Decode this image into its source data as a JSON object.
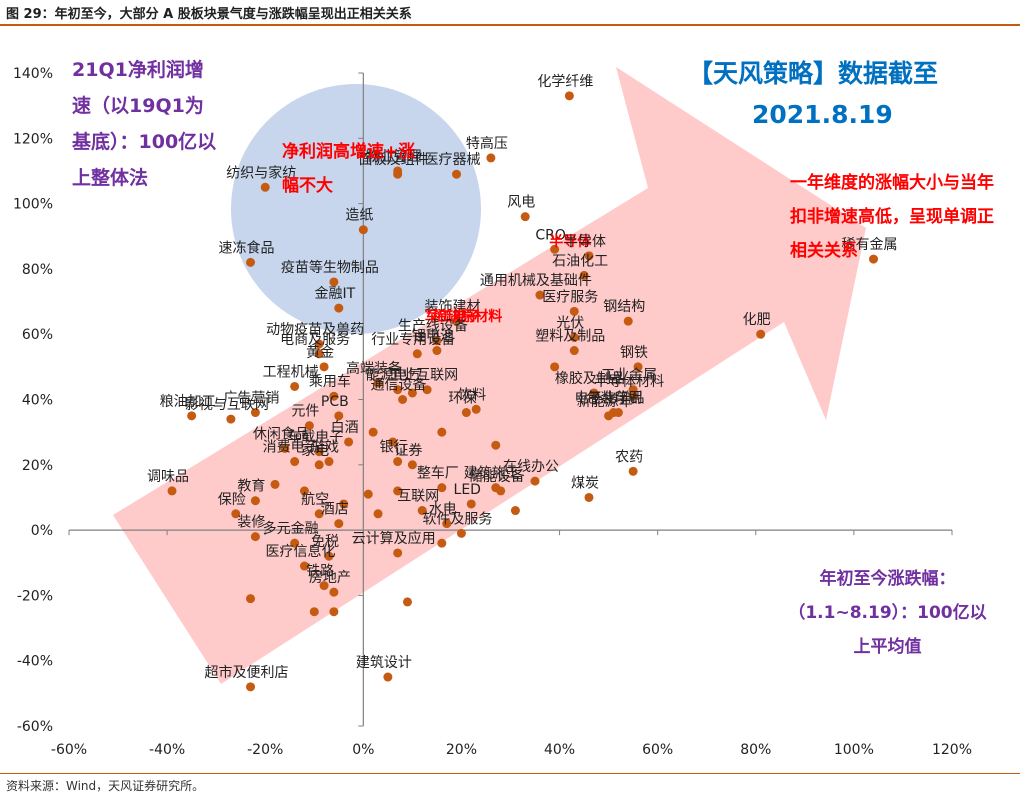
{
  "figure": {
    "title": "图 29：年初至今，大部分 A 股板块景气度与涨跌幅呈现出正相关关系",
    "source": "资料来源：Wind，天风证券研究所。"
  },
  "annotations": {
    "left_note": "21Q1净利润增速（以19Q1为基底）：100亿以上整体法",
    "brand": "【天风策略】数据截至",
    "date": "2021.8.19",
    "right_note": "一年维度的涨幅大小与当年扣非增速高低，呈现单调正相关关系",
    "bubble_note": "净利润高增速+涨幅不大",
    "bottom_note": "年初至今涨跌幅：（1.1~8.19）：100亿以上平均值"
  },
  "colors": {
    "point": "#c55a11",
    "bubble": "#b4c7e7",
    "arrow": "#ffb3b3",
    "axis": "#808080",
    "highlight_label": "#ff0000"
  },
  "chart_data": {
    "type": "scatter",
    "xlim": [
      -0.6,
      1.2
    ],
    "ylim": [
      -0.6,
      1.4
    ],
    "x_ticks": [
      -0.6,
      -0.4,
      -0.2,
      0,
      0.2,
      0.4,
      0.6,
      0.8,
      1.0,
      1.2
    ],
    "x_tick_labels": [
      "-60%",
      "-40%",
      "-20%",
      "0%",
      "20%",
      "40%",
      "60%",
      "80%",
      "100%",
      "120%"
    ],
    "y_ticks": [
      -0.6,
      -0.4,
      -0.2,
      0,
      0.2,
      0.4,
      0.6,
      0.8,
      1.0,
      1.2,
      1.4
    ],
    "y_tick_labels": [
      "-60%",
      "-40%",
      "-20%",
      "0%",
      "20%",
      "40%",
      "60%",
      "80%",
      "100%",
      "120%",
      "140%"
    ],
    "grid": false,
    "points": [
      {
        "label": "化学纤维",
        "x": 0.42,
        "y": 1.33
      },
      {
        "label": "特高压",
        "x": 0.26,
        "y": 1.14
      },
      {
        "label": "医疗器械",
        "x": 0.19,
        "y": 1.09
      },
      {
        "label": "物业管理",
        "x": 0.07,
        "y": 1.1
      },
      {
        "label": "面板及组件",
        "x": 0.07,
        "y": 1.09
      },
      {
        "label": "纺织与家纺",
        "x": -0.2,
        "y": 1.05
      },
      {
        "label": "造纸",
        "x": 0.0,
        "y": 0.92
      },
      {
        "label": "风电",
        "x": 0.33,
        "y": 0.96
      },
      {
        "label": "CRO",
        "x": 0.39,
        "y": 0.86
      },
      {
        "label": "半导体",
        "x": 0.43,
        "y": 0.84,
        "highlight": true
      },
      {
        "label": "半导体",
        "x": 0.46,
        "y": 0.84
      },
      {
        "label": "速冻食品",
        "x": -0.23,
        "y": 0.82
      },
      {
        "label": "稀有金属",
        "x": 1.04,
        "y": 0.83
      },
      {
        "label": "石油化工",
        "x": 0.45,
        "y": 0.78
      },
      {
        "label": "疫苗等生物制品",
        "x": -0.06,
        "y": 0.76
      },
      {
        "label": "通用机械及基础件",
        "x": 0.36,
        "y": 0.72
      },
      {
        "label": "钢结构",
        "x": 0.54,
        "y": 0.64
      },
      {
        "label": "医疗服务",
        "x": 0.43,
        "y": 0.67
      },
      {
        "label": "化肥",
        "x": 0.81,
        "y": 0.6
      },
      {
        "label": "装饰建材",
        "x": 0.19,
        "y": 0.64
      },
      {
        "label": "金融IT",
        "x": -0.05,
        "y": 0.68
      },
      {
        "label": "军工电子",
        "x": 0.19,
        "y": 0.61,
        "highlight": true
      },
      {
        "label": "稀缺原材料",
        "x": 0.22,
        "y": 0.61,
        "highlight": true
      },
      {
        "label": "光伏",
        "x": 0.43,
        "y": 0.59
      },
      {
        "label": "生产线设备",
        "x": 0.15,
        "y": 0.58
      },
      {
        "label": "动物疫苗及兽药",
        "x": -0.09,
        "y": 0.57
      },
      {
        "label": "锂电池",
        "x": 0.15,
        "y": 0.55
      },
      {
        "label": "塑料及制品",
        "x": 0.43,
        "y": 0.55
      },
      {
        "label": "电商及服务",
        "x": -0.09,
        "y": 0.54
      },
      {
        "label": "行业专用设备",
        "x": 0.11,
        "y": 0.54
      },
      {
        "label": "黄金",
        "x": -0.08,
        "y": 0.5
      },
      {
        "label": "钢铁",
        "x": 0.56,
        "y": 0.5
      },
      {
        "label": "工程机械",
        "x": -0.14,
        "y": 0.44
      },
      {
        "label": "高端装备",
        "x": 0.03,
        "y": 0.45
      },
      {
        "label": "能源电气",
        "x": 0.07,
        "y": 0.43
      },
      {
        "label": "工业互联网",
        "x": 0.13,
        "y": 0.43
      },
      {
        "label": "工业金属",
        "x": 0.55,
        "y": 0.43
      },
      {
        "label": "橡胶及制品",
        "x": 0.47,
        "y": 0.42
      },
      {
        "label": "半导体材料",
        "x": 0.55,
        "y": 0.41
      },
      {
        "label": "粮油加工",
        "x": -0.35,
        "y": 0.35
      },
      {
        "label": "广告营销",
        "x": -0.22,
        "y": 0.36
      },
      {
        "label": "乘用车",
        "x": -0.06,
        "y": 0.41
      },
      {
        "label": "通信设备",
        "x": 0.08,
        "y": 0.4
      },
      {
        "label": "饮料",
        "x": 0.23,
        "y": 0.37
      },
      {
        "label": "新能源车",
        "x": 0.5,
        "y": 0.35
      },
      {
        "label": "包装印刷",
        "x": 0.52,
        "y": 0.36
      },
      {
        "label": "电子化学品",
        "x": 0.51,
        "y": 0.36
      },
      {
        "label": "影视与互联网",
        "x": -0.27,
        "y": 0.34
      },
      {
        "label": "环保",
        "x": 0.21,
        "y": 0.36
      },
      {
        "label": "PCB",
        "x": -0.05,
        "y": 0.35
      },
      {
        "label": "元件",
        "x": -0.11,
        "y": 0.32
      },
      {
        "label": "农药",
        "x": 0.55,
        "y": 0.18
      },
      {
        "label": "休闲食品",
        "x": -0.16,
        "y": 0.25
      },
      {
        "label": "车载电子",
        "x": -0.09,
        "y": 0.24
      },
      {
        "label": "游戏",
        "x": -0.07,
        "y": 0.21
      },
      {
        "label": "白酒",
        "x": -0.03,
        "y": 0.27
      },
      {
        "label": "调味品",
        "x": -0.39,
        "y": 0.12
      },
      {
        "label": "消费电子",
        "x": -0.14,
        "y": 0.21
      },
      {
        "label": "家电",
        "x": -0.09,
        "y": 0.2
      },
      {
        "label": "银行",
        "x": 0.07,
        "y": 0.21
      },
      {
        "label": "证券",
        "x": 0.1,
        "y": 0.2
      },
      {
        "label": "保险",
        "x": -0.26,
        "y": 0.05
      },
      {
        "label": "煤炭",
        "x": 0.46,
        "y": 0.1
      },
      {
        "label": "储能设备",
        "x": 0.28,
        "y": 0.12
      },
      {
        "label": "在线办公",
        "x": 0.35,
        "y": 0.15
      },
      {
        "label": "建筑施工",
        "x": 0.27,
        "y": 0.13
      },
      {
        "label": "整车厂",
        "x": 0.16,
        "y": 0.13
      },
      {
        "label": "互联网",
        "x": 0.12,
        "y": 0.06
      },
      {
        "label": "LED",
        "x": 0.22,
        "y": 0.08
      },
      {
        "label": "水电",
        "x": 0.17,
        "y": 0.02
      },
      {
        "label": "软件及服务",
        "x": 0.2,
        "y": -0.01
      },
      {
        "label": "教育",
        "x": -0.22,
        "y": 0.09
      },
      {
        "label": "航空",
        "x": -0.09,
        "y": 0.05
      },
      {
        "label": "酒店",
        "x": -0.05,
        "y": 0.02
      },
      {
        "label": "装修",
        "x": -0.22,
        "y": -0.02
      },
      {
        "label": "多元金融",
        "x": -0.14,
        "y": -0.04
      },
      {
        "label": "医疗信息化",
        "x": -0.12,
        "y": -0.11
      },
      {
        "label": "免税",
        "x": -0.07,
        "y": -0.08
      },
      {
        "label": "铁路",
        "x": -0.08,
        "y": -0.17
      },
      {
        "label": "云计算及应用",
        "x": 0.07,
        "y": -0.07
      },
      {
        "label": "房地产",
        "x": -0.06,
        "y": -0.19
      },
      {
        "label": "超市及便利店",
        "x": -0.23,
        "y": -0.48
      },
      {
        "label": "建筑设计",
        "x": 0.05,
        "y": -0.45
      },
      {
        "x": -0.23,
        "y": -0.21
      },
      {
        "x": -0.1,
        "y": -0.25
      },
      {
        "x": -0.06,
        "y": -0.25
      },
      {
        "x": 0.09,
        "y": -0.22
      },
      {
        "x": 0.03,
        "y": 0.05
      },
      {
        "x": 0.16,
        "y": -0.04
      },
      {
        "x": 0.31,
        "y": 0.06
      },
      {
        "x": 0.39,
        "y": 0.5
      },
      {
        "x": 0.27,
        "y": 0.26
      },
      {
        "x": 0.16,
        "y": 0.3
      },
      {
        "x": 0.1,
        "y": 0.42
      },
      {
        "x": 0.01,
        "y": 0.11
      },
      {
        "x": 0.07,
        "y": 0.12
      },
      {
        "x": -0.12,
        "y": 0.12
      },
      {
        "x": -0.18,
        "y": 0.14
      },
      {
        "x": -0.04,
        "y": 0.08
      },
      {
        "x": 0.02,
        "y": 0.3
      },
      {
        "x": 0.06,
        "y": 0.27
      }
    ]
  }
}
